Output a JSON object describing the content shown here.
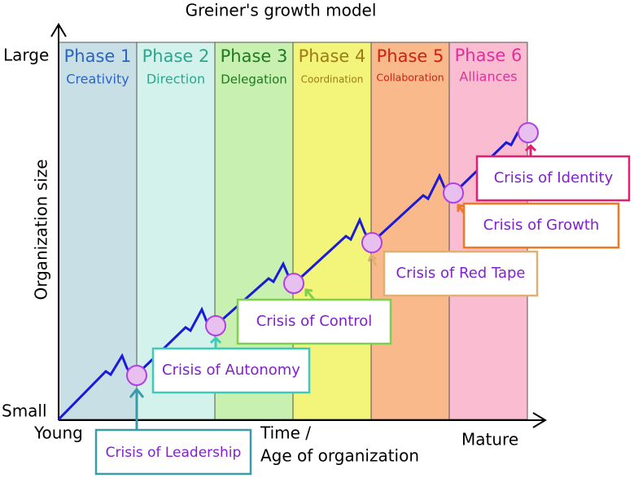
{
  "title": "Greiner's growth model",
  "axes": {
    "y_label": "Organization size",
    "y_top": "Large",
    "y_bottom": "Small",
    "x_left": "Young",
    "x_middle": [
      "Time /",
      "Age of organization"
    ],
    "x_right": "Mature"
  },
  "phases": [
    {
      "label": "Phase 1",
      "subtitle": "Creativity"
    },
    {
      "label": "Phase 2",
      "subtitle": "Direction"
    },
    {
      "label": "Phase 3",
      "subtitle": "Delegation"
    },
    {
      "label": "Phase 4",
      "subtitle": "Coordination"
    },
    {
      "label": "Phase 5",
      "subtitle": "Collaboration"
    },
    {
      "label": "Phase 6",
      "subtitle": "Alliances"
    }
  ],
  "crises": [
    {
      "label": "Crisis of Leadership"
    },
    {
      "label": "Crisis of Autonomy"
    },
    {
      "label": "Crisis of Control"
    },
    {
      "label": "Crisis of Red Tape"
    },
    {
      "label": "Crisis of Growth"
    },
    {
      "label": "Crisis of Identity"
    }
  ]
}
